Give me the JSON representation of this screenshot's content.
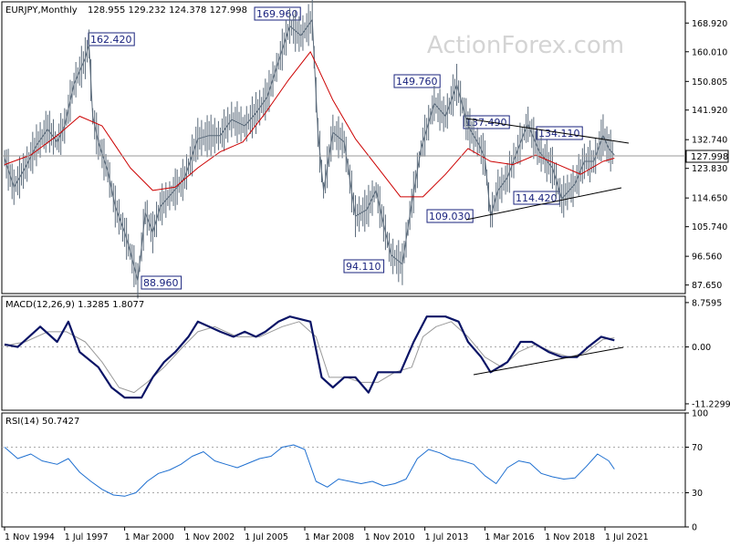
{
  "chart_data": {
    "type": "line",
    "watermark": "ActionForex.com",
    "x_ticks": [
      "1 Nov 1994",
      "1 Jul 1997",
      "1 Mar 2000",
      "1 Nov 2002",
      "1 Jul 2005",
      "1 Mar 2008",
      "1 Nov 2010",
      "1 Jul 2013",
      "1 Mar 2016",
      "1 Nov 2018",
      "1 Jul 2021"
    ],
    "price_panel": {
      "title": "EURJPY,Monthly",
      "ohlc_text": "128.955 129.232 124.378 127.998",
      "ylim": [
        85.0,
        175.5
      ],
      "y_ticks": [
        "168.920",
        "160.010",
        "150.805",
        "141.920",
        "132.740",
        "123.830",
        "114.650",
        "105.740",
        "96.560",
        "87.650"
      ],
      "current_price": "127.998",
      "series": [
        {
          "name": "price",
          "color": "#5a6a7a",
          "points": [
            [
              "1994-11",
              127
            ],
            [
              "1995-04",
              118
            ],
            [
              "1995-10",
              124
            ],
            [
              "1996-04",
              131
            ],
            [
              "1996-10",
              136
            ],
            [
              "1997-03",
              132
            ],
            [
              "1997-07",
              137
            ],
            [
              "1997-12",
              150
            ],
            [
              "1998-06",
              158
            ],
            [
              "1998-08",
              162.4
            ],
            [
              "1998-10",
              140
            ],
            [
              "1999-01",
              132
            ],
            [
              "1999-06",
              123
            ],
            [
              "1999-10",
              112
            ],
            [
              "2000-03",
              104
            ],
            [
              "2000-06",
              98
            ],
            [
              "2000-10",
              88.96
            ],
            [
              "2001-02",
              110
            ],
            [
              "2001-06",
              104
            ],
            [
              "2001-10",
              112
            ],
            [
              "2002-04",
              116
            ],
            [
              "2002-07",
              118
            ],
            [
              "2002-11",
              121
            ],
            [
              "2003-06",
              133
            ],
            [
              "2003-12",
              134
            ],
            [
              "2004-06",
              134
            ],
            [
              "2004-12",
              139
            ],
            [
              "2005-07",
              137
            ],
            [
              "2006-01",
              141
            ],
            [
              "2006-07",
              146
            ],
            [
              "2007-01",
              157
            ],
            [
              "2007-07",
              168
            ],
            [
              "2008-01",
              165
            ],
            [
              "2008-07",
              169.96
            ],
            [
              "2008-10",
              135
            ],
            [
              "2009-01",
              117
            ],
            [
              "2009-06",
              135
            ],
            [
              "2009-12",
              132
            ],
            [
              "2010-06",
              109
            ],
            [
              "2010-12",
              111
            ],
            [
              "2011-05",
              117
            ],
            [
              "2011-10",
              104
            ],
            [
              "2012-01",
              97
            ],
            [
              "2012-07",
              94.11
            ],
            [
              "2012-12",
              113
            ],
            [
              "2013-05",
              130
            ],
            [
              "2013-12",
              144
            ],
            [
              "2014-06",
              140
            ],
            [
              "2014-12",
              149.76
            ],
            [
              "2015-06",
              137
            ],
            [
              "2015-12",
              131
            ],
            [
              "2016-03",
              127
            ],
            [
              "2016-06",
              109.03
            ],
            [
              "2016-10",
              117
            ],
            [
              "2017-03",
              121
            ],
            [
              "2017-12",
              135
            ],
            [
              "2018-02",
              137.49
            ],
            [
              "2018-08",
              129
            ],
            [
              "2019-03",
              124
            ],
            [
              "2019-08",
              114.42
            ],
            [
              "2020-03",
              119
            ],
            [
              "2020-08",
              126
            ],
            [
              "2021-01",
              126
            ],
            [
              "2021-06",
              134.11
            ],
            [
              "2021-09",
              130
            ],
            [
              "2021-12",
              128.0
            ]
          ]
        },
        {
          "name": "moving average",
          "color": "#cc0000",
          "points": [
            [
              "1994-11",
              125
            ],
            [
              "1996-01",
              128
            ],
            [
              "1997-03",
              134
            ],
            [
              "1998-03",
              140
            ],
            [
              "1999-03",
              137
            ],
            [
              "2000-06",
              124
            ],
            [
              "2001-06",
              117
            ],
            [
              "2002-06",
              118
            ],
            [
              "2003-06",
              124
            ],
            [
              "2004-06",
              129
            ],
            [
              "2005-06",
              132
            ],
            [
              "2006-06",
              141
            ],
            [
              "2007-06",
              151
            ],
            [
              "2008-06",
              160
            ],
            [
              "2009-06",
              145
            ],
            [
              "2010-06",
              133
            ],
            [
              "2011-06",
              124
            ],
            [
              "2012-06",
              115
            ],
            [
              "2013-06",
              115
            ],
            [
              "2014-06",
              122
            ],
            [
              "2015-06",
              130
            ],
            [
              "2016-06",
              126
            ],
            [
              "2017-06",
              125
            ],
            [
              "2018-06",
              128
            ],
            [
              "2019-06",
              125
            ],
            [
              "2020-06",
              122
            ],
            [
              "2021-06",
              126
            ],
            [
              "2021-12",
              127
            ]
          ]
        }
      ],
      "annotations": [
        "162.420",
        "169.960",
        "149.760",
        "137.490",
        "134.110",
        "127.998",
        "114.420",
        "109.030",
        "94.110",
        "88.960"
      ]
    },
    "macd_panel": {
      "title": "MACD(12,26,9) 1.3285 1.8077",
      "ylim": [
        -12.5,
        10.0
      ],
      "y_ticks": [
        "8.7595",
        "0.00",
        "-11.2299"
      ],
      "series": [
        {
          "name": "macd",
          "color": "#0a1466",
          "points": [
            [
              "1994-11",
              0.5
            ],
            [
              "1995-06",
              0
            ],
            [
              "1996-06",
              4
            ],
            [
              "1997-03",
              1
            ],
            [
              "1997-09",
              5
            ],
            [
              "1998-03",
              -1
            ],
            [
              "1999-01",
              -4
            ],
            [
              "1999-08",
              -8
            ],
            [
              "2000-03",
              -10
            ],
            [
              "2000-12",
              -10
            ],
            [
              "2001-06",
              -6
            ],
            [
              "2001-12",
              -3
            ],
            [
              "2002-06",
              -1
            ],
            [
              "2003-01",
              2
            ],
            [
              "2003-06",
              5
            ],
            [
              "2003-12",
              4
            ],
            [
              "2004-06",
              3
            ],
            [
              "2005-01",
              2
            ],
            [
              "2005-07",
              3
            ],
            [
              "2006-01",
              2
            ],
            [
              "2006-06",
              3
            ],
            [
              "2007-01",
              5
            ],
            [
              "2007-07",
              6
            ],
            [
              "2008-06",
              5
            ],
            [
              "2008-12",
              -6
            ],
            [
              "2009-06",
              -8
            ],
            [
              "2009-12",
              -6
            ],
            [
              "2010-06",
              -6
            ],
            [
              "2011-01",
              -9
            ],
            [
              "2011-06",
              -5
            ],
            [
              "2011-12",
              -5
            ],
            [
              "2012-06",
              -5
            ],
            [
              "2013-01",
              1
            ],
            [
              "2013-08",
              6
            ],
            [
              "2014-06",
              6
            ],
            [
              "2015-01",
              5
            ],
            [
              "2015-06",
              1
            ],
            [
              "2016-01",
              -2
            ],
            [
              "2016-06",
              -5
            ],
            [
              "2017-03",
              -3
            ],
            [
              "2017-10",
              1
            ],
            [
              "2018-04",
              1
            ],
            [
              "2019-01",
              -1
            ],
            [
              "2019-08",
              -2
            ],
            [
              "2020-04",
              -2
            ],
            [
              "2020-10",
              0
            ],
            [
              "2021-05",
              2
            ],
            [
              "2021-12",
              1.3
            ]
          ]
        },
        {
          "name": "signal",
          "color": "#999999",
          "points": [
            [
              "1994-11",
              0.2
            ],
            [
              "1995-10",
              1
            ],
            [
              "1996-10",
              3
            ],
            [
              "1997-08",
              3
            ],
            [
              "1998-06",
              1
            ],
            [
              "1999-03",
              -3
            ],
            [
              "1999-12",
              -8
            ],
            [
              "2000-08",
              -9
            ],
            [
              "2001-03",
              -7
            ],
            [
              "2001-12",
              -4
            ],
            [
              "2002-10",
              0
            ],
            [
              "2003-06",
              3
            ],
            [
              "2004-03",
              4
            ],
            [
              "2005-03",
              2
            ],
            [
              "2006-03",
              2
            ],
            [
              "2007-03",
              4
            ],
            [
              "2007-12",
              5
            ],
            [
              "2008-09",
              2
            ],
            [
              "2009-04",
              -6
            ],
            [
              "2010-01",
              -6
            ],
            [
              "2010-09",
              -7
            ],
            [
              "2011-06",
              -7
            ],
            [
              "2012-03",
              -5
            ],
            [
              "2012-12",
              -4
            ],
            [
              "2013-06",
              2
            ],
            [
              "2014-01",
              4
            ],
            [
              "2014-09",
              5
            ],
            [
              "2015-06",
              2
            ],
            [
              "2016-03",
              -2
            ],
            [
              "2016-12",
              -4
            ],
            [
              "2017-09",
              -1
            ],
            [
              "2018-06",
              0.5
            ],
            [
              "2019-03",
              -1
            ],
            [
              "2019-12",
              -2
            ],
            [
              "2020-09",
              -1
            ],
            [
              "2021-06",
              1.5
            ],
            [
              "2021-12",
              1.8
            ]
          ]
        }
      ]
    },
    "rsi_panel": {
      "title": "RSI(14) 50.7427",
      "ylim": [
        0,
        100
      ],
      "y_ticks": [
        "100",
        "70",
        "30",
        "0"
      ],
      "levels": [
        70,
        30
      ],
      "series": [
        {
          "name": "rsi",
          "color": "#1e6fd0",
          "points": [
            [
              "1994-11",
              70
            ],
            [
              "1995-06",
              60
            ],
            [
              "1996-01",
              64
            ],
            [
              "1996-07",
              58
            ],
            [
              "1997-03",
              55
            ],
            [
              "1997-09",
              60
            ],
            [
              "1998-03",
              48
            ],
            [
              "1998-09",
              40
            ],
            [
              "1999-03",
              33
            ],
            [
              "1999-09",
              28
            ],
            [
              "2000-03",
              27
            ],
            [
              "2000-09",
              30
            ],
            [
              "2001-03",
              40
            ],
            [
              "2001-09",
              47
            ],
            [
              "2002-03",
              50
            ],
            [
              "2002-09",
              55
            ],
            [
              "2003-03",
              62
            ],
            [
              "2003-09",
              66
            ],
            [
              "2004-03",
              58
            ],
            [
              "2004-09",
              55
            ],
            [
              "2005-03",
              52
            ],
            [
              "2005-09",
              56
            ],
            [
              "2006-03",
              60
            ],
            [
              "2006-09",
              62
            ],
            [
              "2007-03",
              70
            ],
            [
              "2007-09",
              72
            ],
            [
              "2008-03",
              68
            ],
            [
              "2008-09",
              40
            ],
            [
              "2009-03",
              35
            ],
            [
              "2009-09",
              42
            ],
            [
              "2010-03",
              40
            ],
            [
              "2010-09",
              38
            ],
            [
              "2011-03",
              40
            ],
            [
              "2011-09",
              36
            ],
            [
              "2012-03",
              38
            ],
            [
              "2012-09",
              42
            ],
            [
              "2013-03",
              60
            ],
            [
              "2013-09",
              68
            ],
            [
              "2014-03",
              65
            ],
            [
              "2014-09",
              60
            ],
            [
              "2015-03",
              58
            ],
            [
              "2015-09",
              55
            ],
            [
              "2016-03",
              45
            ],
            [
              "2016-09",
              38
            ],
            [
              "2017-03",
              52
            ],
            [
              "2017-09",
              58
            ],
            [
              "2018-03",
              56
            ],
            [
              "2018-09",
              47
            ],
            [
              "2019-03",
              44
            ],
            [
              "2019-09",
              42
            ],
            [
              "2020-03",
              43
            ],
            [
              "2020-09",
              53
            ],
            [
              "2021-03",
              64
            ],
            [
              "2021-09",
              58
            ],
            [
              "2021-12",
              50.7
            ]
          ]
        }
      ]
    }
  }
}
